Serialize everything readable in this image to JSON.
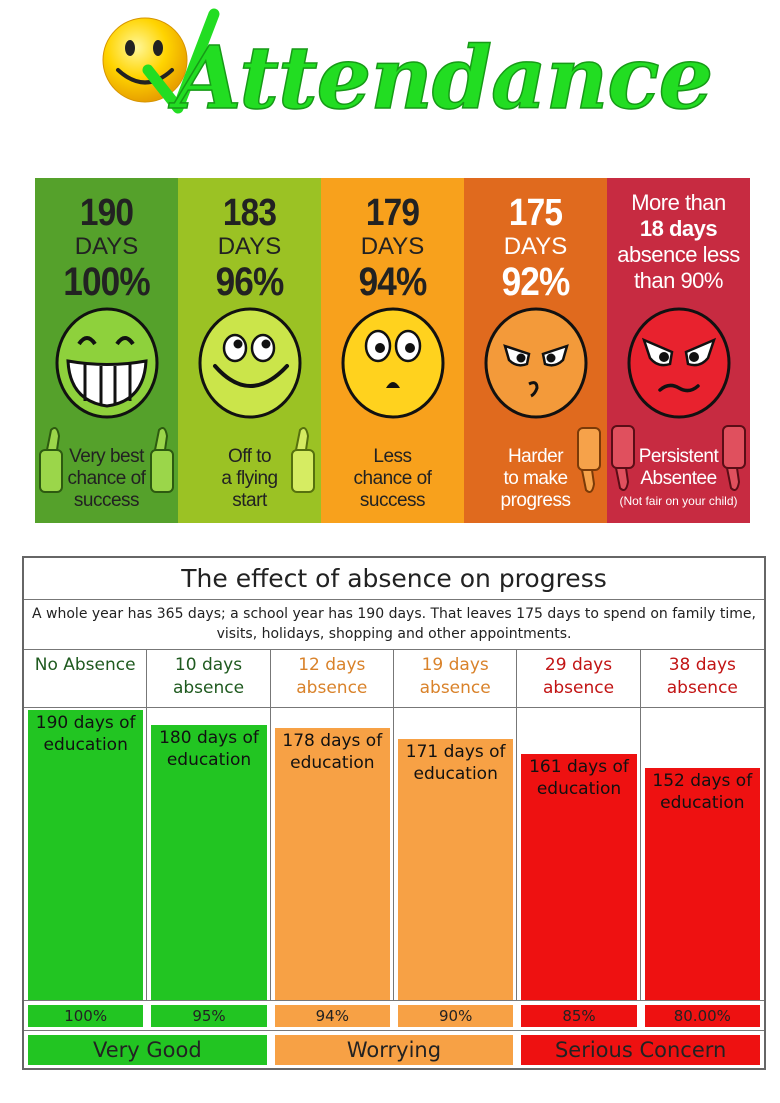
{
  "title": "Attendance",
  "colors": {
    "title_green": "#22dd22",
    "panel1": "#55a12b",
    "panel2": "#9bc224",
    "panel3": "#f8a11c",
    "panel4": "#e06a1e",
    "panel5": "#c72b41",
    "bar_green": "#22c522",
    "bar_orange": "#f7a145",
    "bar_red": "#ee1111"
  },
  "panels": [
    {
      "days": "190",
      "days_label": "DAYS",
      "percent": "100%",
      "caption": [
        "Very best",
        "chance of",
        "success"
      ],
      "face": "grin-icon",
      "thumb": "thumbs-up"
    },
    {
      "days": "183",
      "days_label": "DAYS",
      "percent": "96%",
      "caption": [
        "Off to",
        "a flying",
        "start"
      ],
      "face": "smile-icon",
      "thumb": "thumbs-up"
    },
    {
      "days": "179",
      "days_label": "DAYS",
      "percent": "94%",
      "caption": [
        "Less",
        "chance of",
        "success"
      ],
      "face": "worried-icon",
      "thumb": "none"
    },
    {
      "days": "175",
      "days_label": "DAYS",
      "percent": "92%",
      "caption": [
        "Harder",
        "to make",
        "progress"
      ],
      "face": "annoyed-icon",
      "thumb": "thumbs-down"
    },
    {
      "more_lines": [
        "More than",
        "18 days",
        "absence less",
        "than 90%"
      ],
      "caption": [
        "Persistent",
        "Absentee"
      ],
      "note": "(Not fair on your child)",
      "face": "angry-icon",
      "thumb": "thumbs-down"
    }
  ],
  "table": {
    "title": "The effect of absence on progress",
    "subtitle": "A whole year has 365 days; a school year has 190 days.  That leaves 175 days to spend on family time, visits, holidays, shopping and other appointments.",
    "columns": [
      {
        "header": [
          "No Absence"
        ],
        "days": 190,
        "label": [
          "190 days of",
          "education"
        ],
        "percent": "100%",
        "group": "green"
      },
      {
        "header": [
          "10 days",
          "absence"
        ],
        "days": 180,
        "label": [
          "180 days of",
          "education"
        ],
        "percent": "95%",
        "group": "green"
      },
      {
        "header": [
          "12 days",
          "absence"
        ],
        "days": 178,
        "label": [
          "178 days of",
          "education"
        ],
        "percent": "94%",
        "group": "orange"
      },
      {
        "header": [
          "19 days",
          "absence"
        ],
        "days": 171,
        "label": [
          "171 days of",
          "education"
        ],
        "percent": "90%",
        "group": "orange"
      },
      {
        "header": [
          "29 days",
          "absence"
        ],
        "days": 161,
        "label": [
          "161 days of",
          "education"
        ],
        "percent": "85%",
        "group": "red"
      },
      {
        "header": [
          "38 days",
          "absence"
        ],
        "days": 152,
        "label": [
          "152 days of",
          "education"
        ],
        "percent": "80.00%",
        "group": "red"
      }
    ],
    "ratings": [
      {
        "label": "Very Good",
        "group": "green"
      },
      {
        "label": "Worrying",
        "group": "orange"
      },
      {
        "label": "Serious Concern",
        "group": "red"
      }
    ]
  }
}
